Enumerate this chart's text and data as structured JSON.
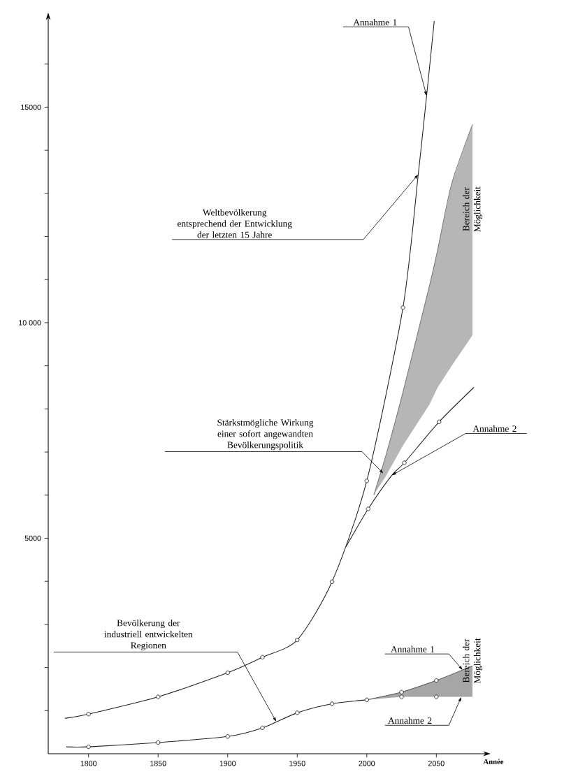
{
  "chart_data": {
    "type": "line",
    "xlabel": "Année",
    "xlim": [
      1771,
      2083
    ],
    "ylim": [
      0,
      17000
    ],
    "xticks": [
      1800,
      1850,
      1900,
      1950,
      2000,
      2050
    ],
    "yticks": [
      {
        "value": 1000,
        "label": null
      },
      {
        "value": 2000,
        "label": null
      },
      {
        "value": 3000,
        "label": null
      },
      {
        "value": 4000,
        "label": null
      },
      5000,
      {
        "value": 6000,
        "label": null
      },
      {
        "value": 7000,
        "label": null
      },
      {
        "value": 8000,
        "label": null
      },
      {
        "value": 9000,
        "label": null
      },
      {
        "value": 10000,
        "label": "10 000"
      },
      {
        "value": 11000,
        "label": null
      },
      {
        "value": 12000,
        "label": null
      },
      {
        "value": 13000,
        "label": null
      },
      {
        "value": 14000,
        "label": null
      },
      15000,
      {
        "value": 16000,
        "label": null
      }
    ],
    "series": [
      {
        "color": "#222222",
        "x": [
          1783,
          1800,
          1850,
          1900,
          1925,
          1950,
          1975,
          2000,
          2026,
          2037,
          2043,
          2048.5
        ],
        "values": [
          820,
          920,
          1320,
          1880,
          2240,
          2640,
          3990,
          6330,
          10350,
          13440,
          15260,
          17000
        ]
      },
      {
        "color": "#222222",
        "x": [
          1985,
          2001,
          2018,
          2027,
          2052,
          2077
        ],
        "values": [
          4800,
          5680,
          6460,
          6750,
          7700,
          8500
        ]
      },
      {
        "type": "line",
        "name": "Bereich der Möglichkeit",
        "color": "#7a7a7a",
        "x": [
          2005,
          2014,
          2026,
          2045,
          2051,
          2061,
          2076
        ],
        "values": [
          6000,
          6950,
          8390,
          10850,
          11700,
          13220,
          14600
        ],
        "upper": [
          6000,
          6950,
          8390,
          10850,
          11700,
          13220,
          14600
        ],
        "lower": [
          6000,
          6460,
          7150,
          8100,
          8500,
          9000,
          9710
        ]
      },
      {
        "color": "#222222",
        "x": [
          1784,
          1800,
          1850,
          1900,
          1925,
          1950,
          1975,
          2000
        ],
        "values": [
          160,
          160,
          260,
          400,
          600,
          950,
          1160,
          1250
        ]
      },
      {
        "type": "line",
        "name": "Bereich der Möglichkeit",
        "color": "#5e5e5e",
        "x": [
          2000,
          2025,
          2050,
          2076
        ],
        "values": [
          1250,
          1430,
          1700,
          2040
        ],
        "upper": [
          1250,
          1430,
          1700,
          2040
        ],
        "lower": [
          1250,
          1320,
          1320,
          1320
        ]
      },
      {
        "type": "scatter",
        "marker": "circle",
        "color": "#222222",
        "x": [
          1800,
          1850,
          1900,
          1925,
          1950,
          1975,
          2000,
          2026,
          2001,
          2027,
          2052,
          1800,
          1850,
          1900,
          1925,
          1950,
          1975,
          2000,
          2025,
          2050,
          2025,
          2050
        ],
        "values": [
          920,
          1320,
          1880,
          2240,
          2640,
          3990,
          6330,
          10350,
          5680,
          6750,
          7700,
          160,
          260,
          400,
          600,
          950,
          1160,
          1250,
          1430,
          1700,
          1320,
          1320
        ]
      }
    ],
    "annotations": [
      {
        "text": "Annahme 1",
        "x": 2043,
        "y": 15260
      },
      {
        "text": "Weltbevölkerung\nentsprechend der Entwicklung\nder letzten 15 Jahre",
        "x": 2037,
        "y": 13440
      },
      {
        "text": "Stärkstmögliche Wirkung\neiner sofort angewandten\nBevölkerungspolitik",
        "x": 2012,
        "y": 6500
      },
      {
        "text": "Annahme 2",
        "x": 2018,
        "y": 6460
      },
      {
        "text": "Bevölkerung der\nindustriell entwickelten\nRegionen",
        "x": 1935,
        "y": 740
      },
      {
        "text": "Annahme 1",
        "x": 2069,
        "y": 1940
      },
      {
        "text": "Annahme 2",
        "x": 2068,
        "y": 1320
      }
    ]
  }
}
